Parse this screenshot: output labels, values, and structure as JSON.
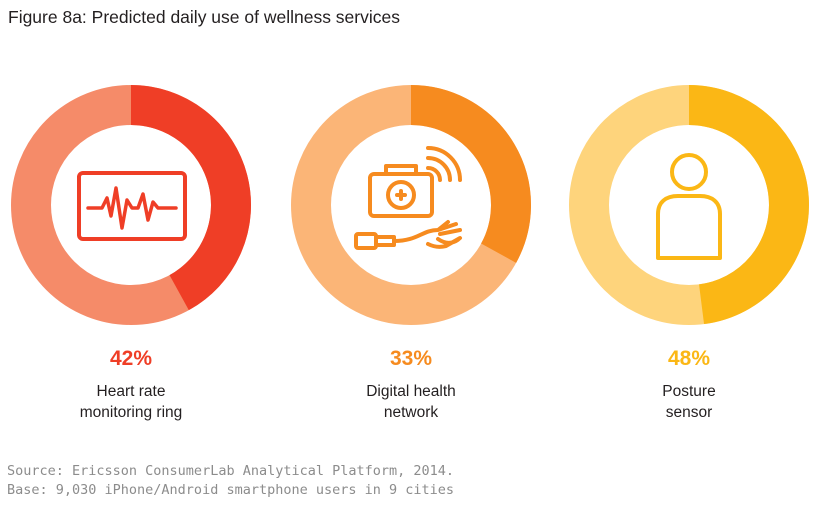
{
  "title": "Figure 8a: Predicted daily use of wellness services",
  "chart_data": {
    "type": "pie",
    "title": "Figure 8a: Predicted daily use of wellness services",
    "series": [
      {
        "name": "Heart rate monitoring ring",
        "value": 42,
        "value_label": "42%",
        "label": "Heart rate\nmonitoring ring",
        "colors": {
          "fill": "#ef3e26",
          "rest": "#f58b69",
          "text": "#ef3e26"
        },
        "icon": "heart-monitor-icon"
      },
      {
        "name": "Digital health network",
        "value": 33,
        "value_label": "33%",
        "label": "Digital health\nnetwork",
        "colors": {
          "fill": "#f68b1f",
          "rest": "#fbb577",
          "text": "#f68b1f"
        },
        "icon": "medical-kit-icon"
      },
      {
        "name": "Posture sensor",
        "value": 48,
        "value_label": "48%",
        "label": "Posture\nsensor",
        "colors": {
          "fill": "#fbb715",
          "rest": "#fed47c",
          "text": "#fbb715"
        },
        "icon": "person-icon"
      }
    ]
  },
  "footnote": {
    "source": "Source: Ericsson ConsumerLab Analytical Platform, 2014.",
    "base": "Base: 9,030 iPhone/Android smartphone users in 9 cities"
  }
}
